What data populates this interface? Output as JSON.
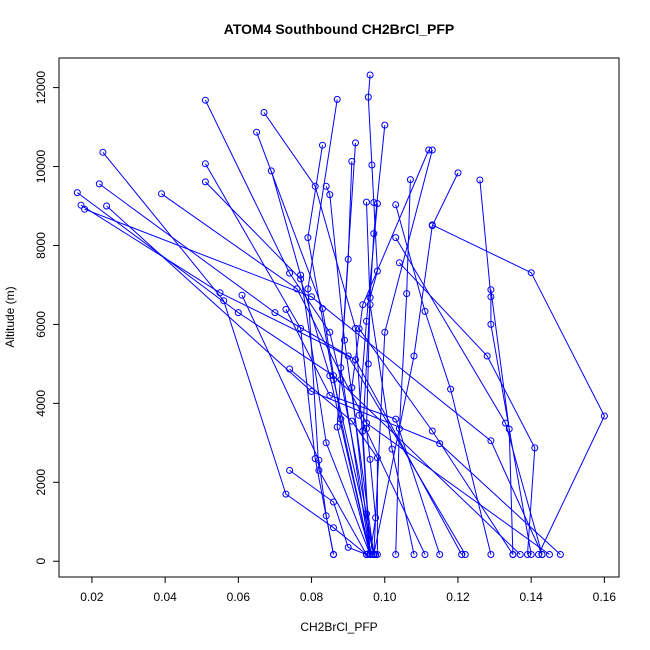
{
  "chart_data": {
    "type": "line",
    "title": "ATOM4 Southbound CH2BrCl_PFP",
    "xlabel": "CH2BrCl_PFP",
    "ylabel": "Altitude (m)",
    "xlim": [
      0.011,
      0.164
    ],
    "ylim": [
      -400,
      12750
    ],
    "xticks": [
      0.02,
      0.04,
      0.06,
      0.08,
      0.1,
      0.12,
      0.14,
      0.16
    ],
    "xtick_labels": [
      "0.02",
      "0.04",
      "0.06",
      "0.08",
      "0.10",
      "0.12",
      "0.14",
      "0.16"
    ],
    "yticks": [
      0,
      2000,
      4000,
      6000,
      8000,
      10000,
      12000
    ],
    "ytick_labels": [
      "0",
      "2000",
      "4000",
      "6000",
      "8000",
      "10000",
      "12000"
    ],
    "grid": false,
    "color": "#0000ff",
    "marker": "open-circle",
    "series": [
      {
        "x": [
          0.096,
          0.0955,
          0.0965,
          0.097,
          0.098,
          0.096,
          0.0955,
          0.095,
          0.096,
          0.0975,
          0.096,
          0.0965,
          0.0955,
          0.0975
        ],
        "y": [
          12320,
          11760,
          10040,
          9090,
          7350,
          6680,
          5000,
          3360,
          2580,
          1100,
          170,
          180,
          190,
          170
        ]
      },
      {
        "x": [
          0.051,
          0.074,
          0.085,
          0.088,
          0.095,
          0.097
        ],
        "y": [
          11680,
          7300,
          5800,
          4600,
          1200,
          170
        ]
      },
      {
        "x": [
          0.067,
          0.081,
          0.092,
          0.096
        ],
        "y": [
          11370,
          9500,
          5900,
          170
        ]
      },
      {
        "x": [
          0.087,
          0.079,
          0.082,
          0.095
        ],
        "y": [
          11700,
          6900,
          2300,
          170
        ]
      },
      {
        "x": [
          0.1,
          0.097,
          0.094,
          0.096
        ],
        "y": [
          11050,
          8300,
          3300,
          170
        ]
      },
      {
        "x": [
          0.065,
          0.083,
          0.088,
          0.096
        ],
        "y": [
          10870,
          6400,
          3600,
          170
        ]
      },
      {
        "x": [
          0.083,
          0.079,
          0.086,
          0.097
        ],
        "y": [
          10540,
          8200,
          4600,
          170
        ]
      },
      {
        "x": [
          0.092,
          0.088,
          0.096
        ],
        "y": [
          10600,
          4900,
          170
        ]
      },
      {
        "x": [
          0.112,
          0.094,
          0.091,
          0.096
        ],
        "y": [
          10420,
          6500,
          4400,
          170
        ]
      },
      {
        "x": [
          0.113,
          0.1,
          0.097
        ],
        "y": [
          10420,
          5800,
          170
        ]
      },
      {
        "x": [
          0.023,
          0.056,
          0.073,
          0.086,
          0.095
        ],
        "y": [
          10360,
          6600,
          1700,
          850,
          170
        ]
      },
      {
        "x": [
          0.051,
          0.077,
          0.081,
          0.086
        ],
        "y": [
          10070,
          5900,
          2600,
          170
        ]
      },
      {
        "x": [
          0.091,
          0.09,
          0.087,
          0.096
        ],
        "y": [
          10130,
          7650,
          3400,
          170
        ]
      },
      {
        "x": [
          0.12,
          0.113,
          0.108,
          0.097
        ],
        "y": [
          9840,
          8500,
          5200,
          170
        ]
      },
      {
        "x": [
          0.069,
          0.077,
          0.084,
          0.096
        ],
        "y": [
          9890,
          7250,
          3000,
          170
        ]
      },
      {
        "x": [
          0.126,
          0.129,
          0.129,
          0.14
        ],
        "y": [
          9660,
          6700,
          6000,
          170
        ]
      },
      {
        "x": [
          0.107,
          0.106,
          0.104,
          0.103
        ],
        "y": [
          9670,
          6780,
          3360,
          170
        ]
      },
      {
        "x": [
          0.051,
          0.077,
          0.085,
          0.096
        ],
        "y": [
          9610,
          7150,
          4700,
          170
        ]
      },
      {
        "x": [
          0.022,
          0.07,
          0.092,
          0.121
        ],
        "y": [
          9560,
          6300,
          5100,
          170
        ]
      },
      {
        "x": [
          0.084,
          0.085,
          0.089,
          0.097
        ],
        "y": [
          9500,
          9290,
          5600,
          170
        ]
      },
      {
        "x": [
          0.016,
          0.06,
          0.086,
          0.137
        ],
        "y": [
          9340,
          6300,
          4700,
          170
        ]
      },
      {
        "x": [
          0.039,
          0.076,
          0.095,
          0.145
        ],
        "y": [
          9310,
          6900,
          3500,
          170
        ]
      },
      {
        "x": [
          0.017,
          0.055,
          0.09,
          0.122
        ],
        "y": [
          9020,
          6800,
          5200,
          170
        ]
      },
      {
        "x": [
          0.095,
          0.096,
          0.102,
          0.108
        ],
        "y": [
          9100,
          6500,
          2840,
          170
        ]
      },
      {
        "x": [
          0.098,
          0.095,
          0.093,
          0.111
        ],
        "y": [
          9060,
          6080,
          3700,
          170
        ]
      },
      {
        "x": [
          0.103,
          0.111,
          0.118,
          0.129
        ],
        "y": [
          9030,
          6330,
          4360,
          170
        ]
      },
      {
        "x": [
          0.113,
          0.14,
          0.16,
          0.142
        ],
        "y": [
          8520,
          7310,
          3680,
          170
        ]
      },
      {
        "x": [
          0.018,
          0.08,
          0.129,
          0.143
        ],
        "y": [
          8920,
          6700,
          3050,
          170
        ]
      },
      {
        "x": [
          0.103,
          0.133,
          0.143
        ],
        "y": [
          8200,
          3500,
          170
        ]
      },
      {
        "x": [
          0.024,
          0.08,
          0.115,
          0.148
        ],
        "y": [
          9000,
          4300,
          2980,
          170
        ]
      },
      {
        "x": [
          0.093,
          0.113,
          0.135
        ],
        "y": [
          5890,
          3300,
          170
        ]
      },
      {
        "x": [
          0.129,
          0.134,
          0.135
        ],
        "y": [
          6880,
          3350,
          170
        ]
      },
      {
        "x": [
          0.104,
          0.128,
          0.141,
          0.139
        ],
        "y": [
          7560,
          5200,
          2870,
          170
        ]
      },
      {
        "x": [
          0.061,
          0.082,
          0.084,
          0.086
        ],
        "y": [
          6740,
          2560,
          1150,
          170
        ]
      },
      {
        "x": [
          0.073,
          0.085,
          0.103,
          0.115
        ],
        "y": [
          6380,
          4200,
          3600,
          170
        ]
      },
      {
        "x": [
          0.074,
          0.091,
          0.098,
          0.098
        ],
        "y": [
          4870,
          3550,
          2620,
          170
        ]
      },
      {
        "x": [
          0.074,
          0.086,
          0.09,
          0.095
        ],
        "y": [
          2300,
          1500,
          350,
          170
        ]
      }
    ]
  }
}
